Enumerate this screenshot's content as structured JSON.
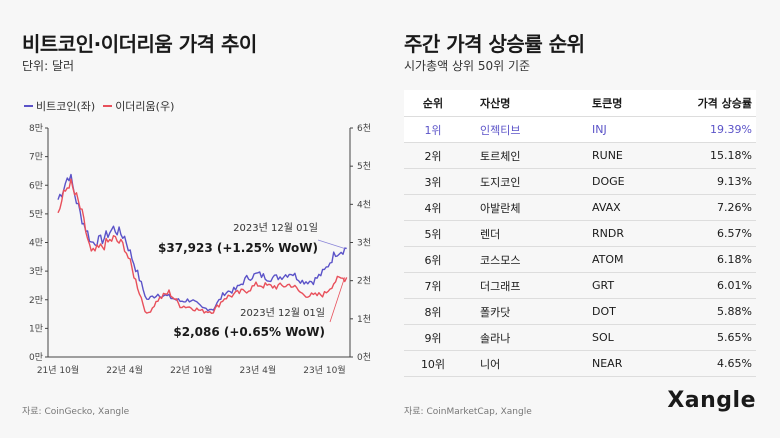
{
  "left": {
    "title": "비트코인·이더리움 가격 추이",
    "subtitle": "단위: 달러",
    "footer": "자료: CoinGecko, Xangle"
  },
  "right": {
    "title": "주간 가격 상승률 순위",
    "subtitle": "시가총액 상위 50위 기준",
    "footer": "자료: CoinMarketCap, Xangle"
  },
  "brand": "Xangle",
  "colors": {
    "btc": "#5b53c8",
    "eth": "#e8505b",
    "highlight": "#5b53c8"
  },
  "table": {
    "headers": {
      "rank": "순위",
      "name": "자산명",
      "token": "토큰명",
      "rate": "가격 상승률"
    },
    "rows": [
      {
        "rank": "1위",
        "name": "인젝티브",
        "token": "INJ",
        "rate": "19.39%"
      },
      {
        "rank": "2위",
        "name": "토르체인",
        "token": "RUNE",
        "rate": "15.18%"
      },
      {
        "rank": "3위",
        "name": "도지코인",
        "token": "DOGE",
        "rate": "9.13%"
      },
      {
        "rank": "4위",
        "name": "아발란체",
        "token": "AVAX",
        "rate": "7.26%"
      },
      {
        "rank": "5위",
        "name": "렌더",
        "token": "RNDR",
        "rate": "6.57%"
      },
      {
        "rank": "6위",
        "name": "코스모스",
        "token": "ATOM",
        "rate": "6.18%"
      },
      {
        "rank": "7위",
        "name": "더그래프",
        "token": "GRT",
        "rate": "6.01%"
      },
      {
        "rank": "8위",
        "name": "폴카닷",
        "token": "DOT",
        "rate": "5.88%"
      },
      {
        "rank": "9위",
        "name": "솔라나",
        "token": "SOL",
        "rate": "5.65%"
      },
      {
        "rank": "10위",
        "name": "니어",
        "token": "NEAR",
        "rate": "4.65%"
      }
    ]
  },
  "chart_data": [
    {
      "type": "line",
      "x_labels": [
        "21년 10월",
        "22년 4월",
        "22년 10월",
        "23년 4월",
        "23년 10월"
      ],
      "y_left_ticks": [
        "0만",
        "1만",
        "2만",
        "3만",
        "4만",
        "5만",
        "6만",
        "7만",
        "8만"
      ],
      "y_right_ticks": [
        "0천",
        "1천",
        "2천",
        "3천",
        "4천",
        "5천",
        "6천"
      ],
      "ylim_left": [
        0,
        80000
      ],
      "ylim_right": [
        0,
        6000
      ],
      "legend": [
        "비트코인(좌)",
        "이더리움(우)"
      ],
      "series": [
        {
          "name": "비트코인(좌)",
          "axis": "left",
          "x": [
            "2021-10",
            "2021-11",
            "2021-12",
            "2022-01",
            "2022-02",
            "2022-03",
            "2022-04",
            "2022-05",
            "2022-06",
            "2022-07",
            "2022-08",
            "2022-09",
            "2022-10",
            "2022-11",
            "2022-12",
            "2023-01",
            "2023-02",
            "2023-03",
            "2023-04",
            "2023-05",
            "2023-06",
            "2023-07",
            "2023-08",
            "2023-09",
            "2023-10",
            "2023-11",
            "2023-12"
          ],
          "values": [
            55000,
            64000,
            50000,
            40000,
            41000,
            45000,
            42000,
            31000,
            20000,
            22000,
            21000,
            19500,
            20000,
            17000,
            16800,
            22500,
            23500,
            27500,
            29000,
            27500,
            28000,
            29500,
            26500,
            26500,
            30000,
            36500,
            37923
          ]
        },
        {
          "name": "이더리움(우)",
          "axis": "right",
          "x": [
            "2021-10",
            "2021-11",
            "2021-12",
            "2022-01",
            "2022-02",
            "2022-03",
            "2022-04",
            "2022-05",
            "2022-06",
            "2022-07",
            "2022-08",
            "2022-09",
            "2022-10",
            "2022-11",
            "2022-12",
            "2023-01",
            "2023-02",
            "2023-03",
            "2023-04",
            "2023-05",
            "2023-06",
            "2023-07",
            "2023-08",
            "2023-09",
            "2023-10",
            "2023-11",
            "2023-12"
          ],
          "values": [
            3800,
            4600,
            3900,
            2700,
            2900,
            3100,
            2900,
            2000,
            1100,
            1500,
            1700,
            1350,
            1300,
            1200,
            1200,
            1550,
            1650,
            1750,
            1900,
            1850,
            1850,
            1900,
            1650,
            1600,
            1650,
            2000,
            2086
          ]
        }
      ],
      "annotations": [
        {
          "series": "비트코인(좌)",
          "date": "2023년 12월 01일",
          "label": "$37,923 (+1.25% WoW)"
        },
        {
          "series": "이더리움(우)",
          "date": "2023년 12월 01일",
          "label": "$2,086 (+0.65% WoW)"
        }
      ]
    },
    {
      "type": "table",
      "columns": [
        "순위",
        "자산명",
        "토큰명",
        "가격 상승률"
      ],
      "rows": [
        [
          "1위",
          "인젝티브",
          "INJ",
          "19.39%"
        ],
        [
          "2위",
          "토르체인",
          "RUNE",
          "15.18%"
        ],
        [
          "3위",
          "도지코인",
          "DOGE",
          "9.13%"
        ],
        [
          "4위",
          "아발란체",
          "AVAX",
          "7.26%"
        ],
        [
          "5위",
          "렌더",
          "RNDR",
          "6.57%"
        ],
        [
          "6위",
          "코스모스",
          "ATOM",
          "6.18%"
        ],
        [
          "7위",
          "더그래프",
          "GRT",
          "6.01%"
        ],
        [
          "8위",
          "폴카닷",
          "DOT",
          "5.88%"
        ],
        [
          "9위",
          "솔라나",
          "SOL",
          "5.65%"
        ],
        [
          "10위",
          "니어",
          "NEAR",
          "4.65%"
        ]
      ]
    }
  ]
}
